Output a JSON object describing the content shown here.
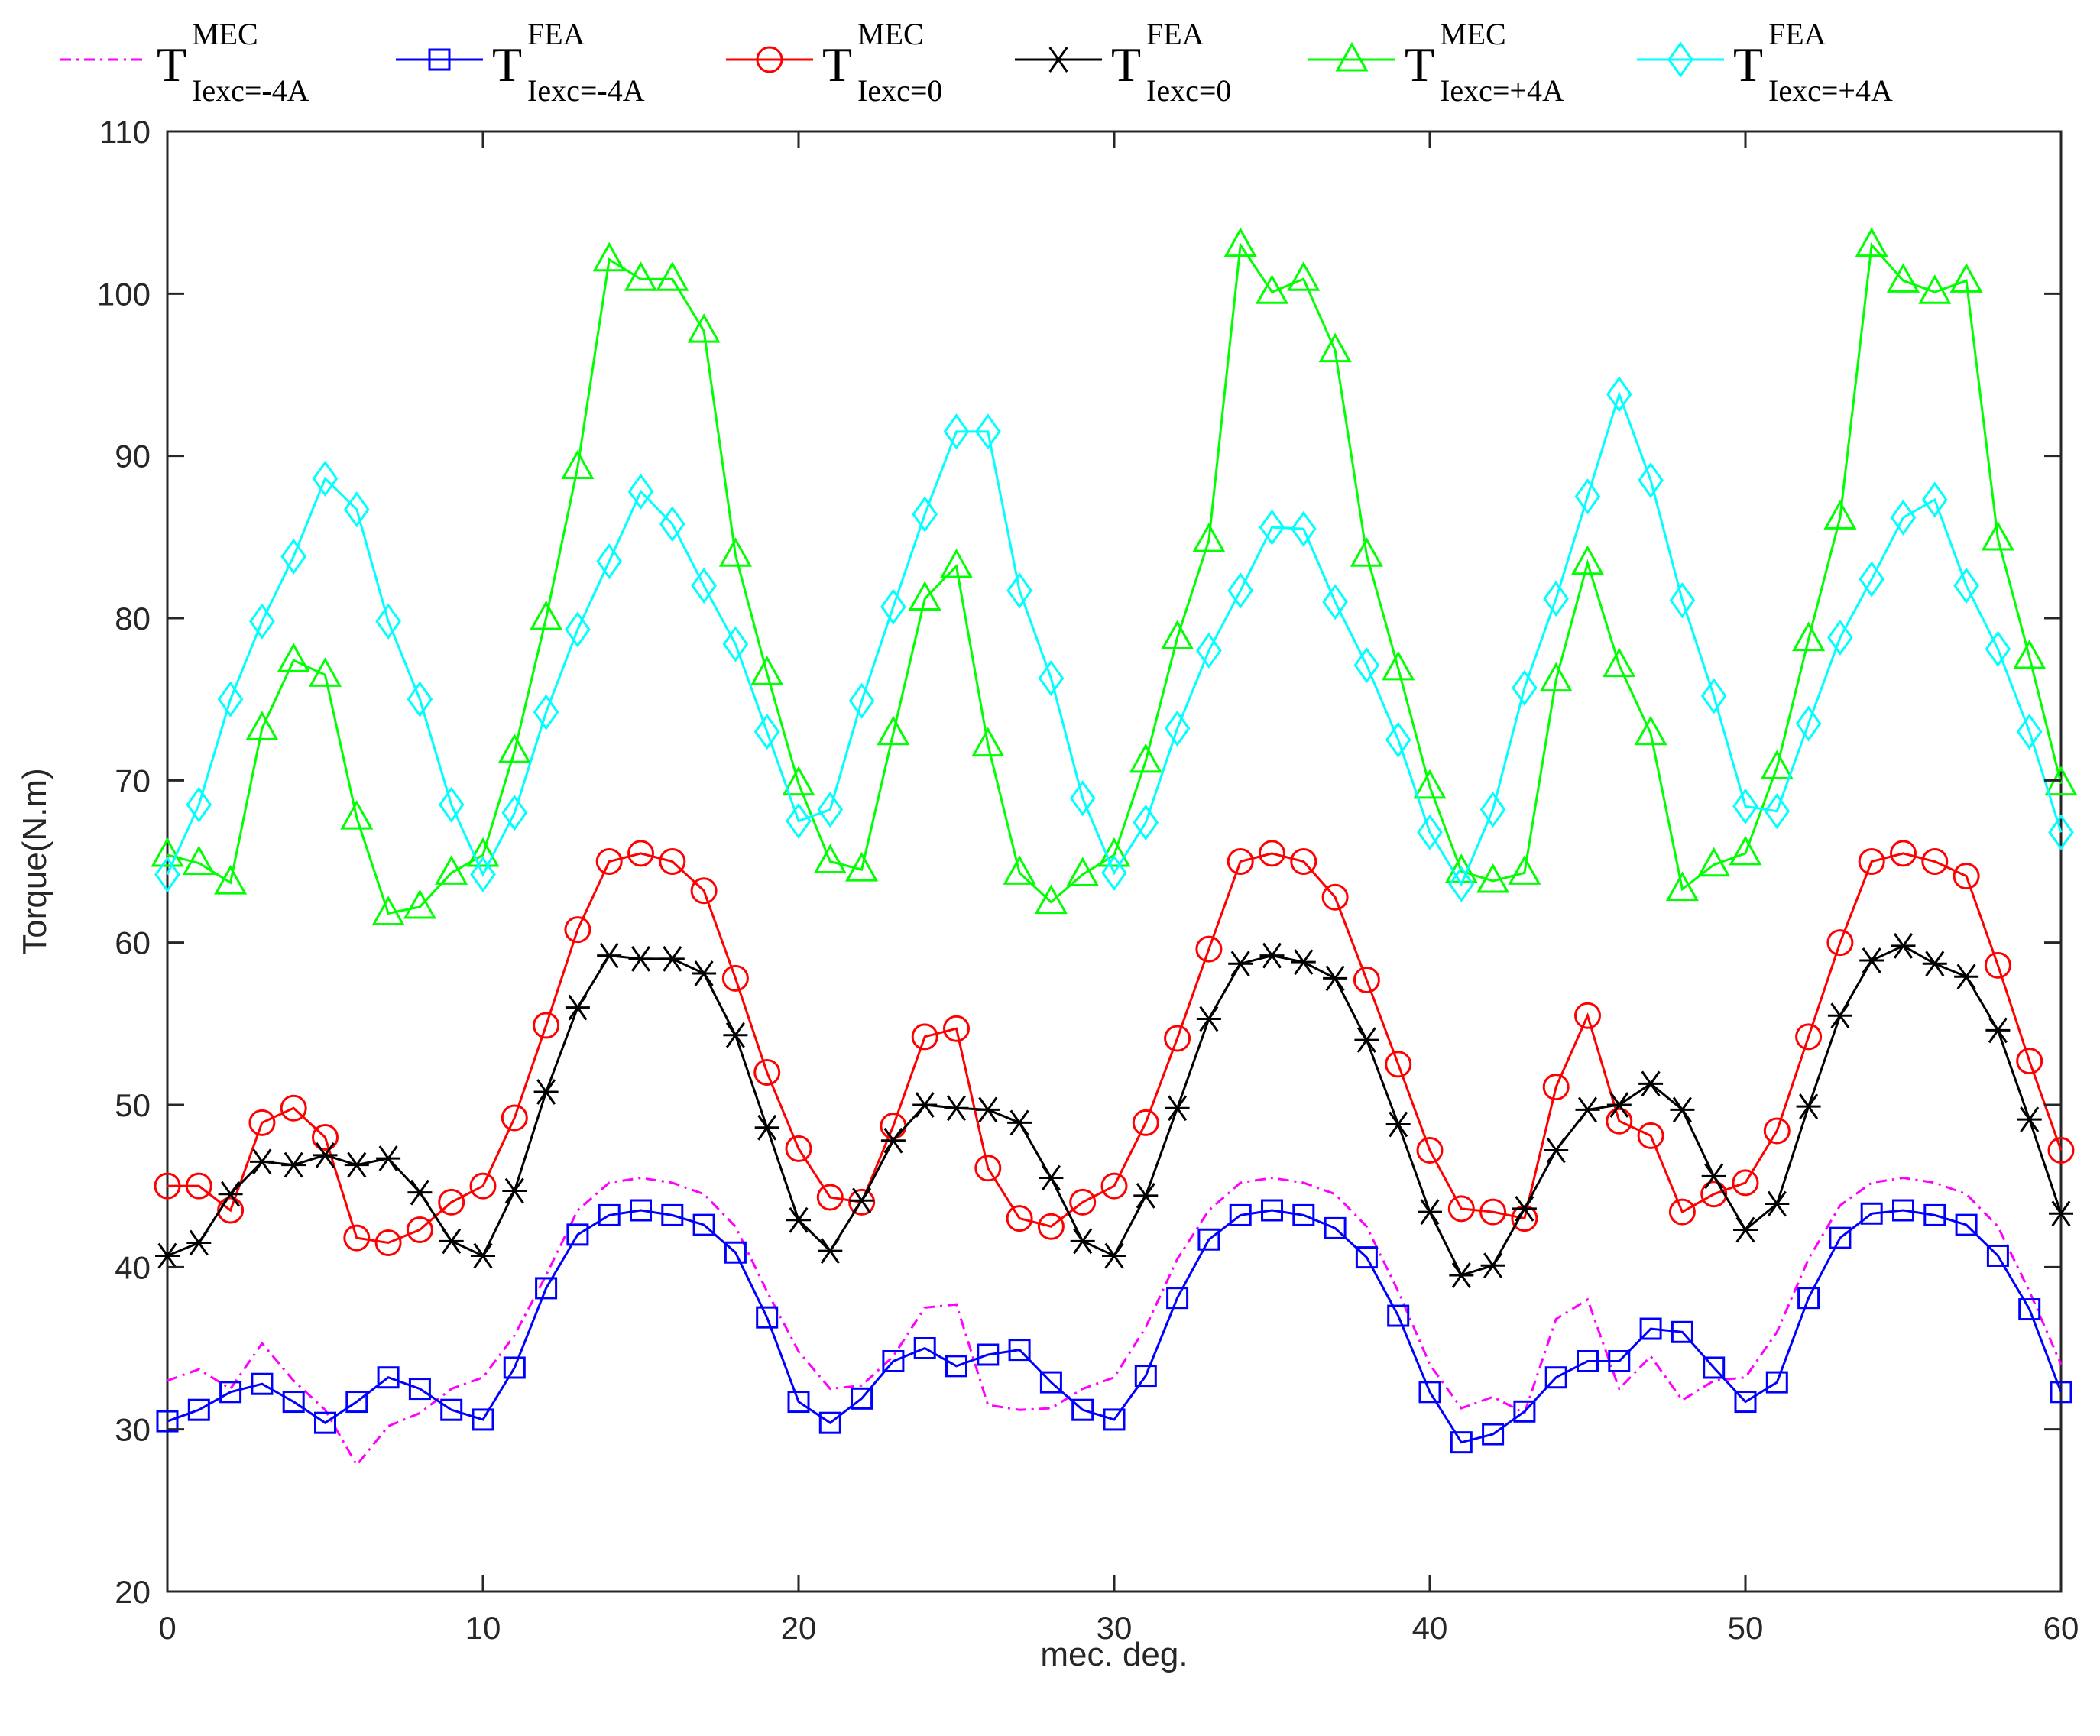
{
  "chart_data": {
    "type": "line",
    "title": "",
    "xlabel": "mec. deg.",
    "ylabel": "Torque(N.m)",
    "xlim": [
      0,
      60
    ],
    "ylim": [
      20,
      110
    ],
    "xticks": [
      0,
      10,
      20,
      30,
      40,
      50,
      60
    ],
    "yticks": [
      20,
      30,
      40,
      50,
      60,
      70,
      80,
      90,
      100,
      110
    ],
    "xtick_labels": [
      "0",
      "10",
      "20",
      "30",
      "40",
      "50",
      "60"
    ],
    "ytick_labels": [
      "20",
      "30",
      "40",
      "50",
      "60",
      "70",
      "80",
      "90",
      "100",
      "110"
    ],
    "grid": false,
    "legend_position": "top",
    "x": [
      0,
      1,
      2,
      3,
      4,
      5,
      6,
      7,
      8,
      9,
      10,
      11,
      12,
      13,
      14,
      15,
      16,
      17,
      18,
      19,
      20,
      21,
      22,
      23,
      24,
      25,
      26,
      27,
      28,
      29,
      30,
      31,
      32,
      33,
      34,
      35,
      36,
      37,
      38,
      39,
      40,
      41,
      42,
      43,
      44,
      45,
      46,
      47,
      48,
      49,
      50,
      51,
      52,
      53,
      54,
      55,
      56,
      57,
      58,
      59,
      60
    ],
    "series": [
      {
        "name": "T MEC Iexc=-4A",
        "legend_main": "T",
        "legend_sup": "MEC",
        "legend_sub": "Iexc=-4A",
        "color": "#ff00ff",
        "marker": "none",
        "linestyle": "dashdot",
        "values": [
          33.0,
          33.7,
          32.5,
          35.3,
          33.0,
          31.2,
          27.8,
          30.2,
          31.0,
          32.5,
          33.2,
          35.8,
          39.5,
          43.5,
          45.2,
          45.5,
          45.2,
          44.5,
          42.5,
          38.5,
          34.8,
          32.5,
          32.7,
          34.5,
          37.5,
          37.7,
          31.5,
          31.2,
          31.3,
          32.5,
          33.2,
          36.3,
          40.5,
          43.5,
          45.2,
          45.5,
          45.2,
          44.5,
          42.5,
          38.5,
          34.0,
          31.3,
          32.0,
          31.0,
          36.8,
          38.0,
          32.5,
          34.5,
          31.8,
          33.0,
          33.2,
          36.0,
          40.5,
          43.8,
          45.2,
          45.5,
          45.2,
          44.5,
          42.5,
          38.5,
          34.0
        ]
      },
      {
        "name": "T FEA Iexc=-4A",
        "legend_main": "T",
        "legend_sup": "FEA",
        "legend_sub": "Iexc=-4A",
        "color": "#0000ff",
        "marker": "square",
        "linestyle": "solid",
        "values": [
          30.5,
          31.2,
          32.3,
          32.8,
          31.7,
          30.4,
          31.7,
          33.2,
          32.5,
          31.2,
          30.6,
          33.8,
          38.7,
          42.0,
          43.2,
          43.5,
          43.2,
          42.6,
          40.9,
          36.9,
          31.7,
          30.4,
          31.9,
          34.2,
          35.0,
          33.9,
          34.6,
          34.9,
          32.9,
          31.2,
          30.6,
          33.3,
          38.1,
          41.7,
          43.2,
          43.5,
          43.2,
          42.4,
          40.6,
          37.0,
          32.3,
          29.2,
          29.7,
          31.1,
          33.2,
          34.2,
          34.2,
          36.2,
          36.0,
          33.8,
          31.7,
          32.9,
          38.1,
          41.8,
          43.3,
          43.5,
          43.2,
          42.6,
          40.7,
          37.4,
          32.3
        ]
      },
      {
        "name": "T MEC Iexc=0",
        "legend_main": "T",
        "legend_sup": "MEC",
        "legend_sub": "Iexc=0",
        "color": "#ff0000",
        "marker": "circle",
        "linestyle": "solid",
        "values": [
          45.0,
          45.0,
          43.5,
          48.9,
          49.8,
          48.0,
          41.8,
          41.5,
          42.3,
          44.0,
          45.0,
          49.2,
          54.9,
          60.8,
          65.0,
          65.5,
          65.0,
          63.2,
          57.8,
          52.0,
          47.3,
          44.3,
          44.0,
          48.7,
          54.2,
          54.7,
          46.1,
          43.0,
          42.5,
          44.0,
          45.0,
          48.9,
          54.1,
          59.6,
          65.0,
          65.5,
          65.0,
          62.8,
          57.7,
          52.5,
          47.2,
          43.6,
          43.4,
          43.0,
          51.1,
          55.5,
          49.0,
          48.1,
          43.4,
          44.5,
          45.2,
          48.4,
          54.2,
          60.0,
          65.0,
          65.5,
          65.0,
          64.1,
          58.6,
          52.7,
          47.2
        ]
      },
      {
        "name": "T FEA Iexc=0",
        "legend_main": "T",
        "legend_sup": "FEA",
        "legend_sub": "Iexc=0",
        "color": "#000000",
        "marker": "asterisk",
        "linestyle": "solid",
        "values": [
          40.7,
          41.5,
          44.5,
          46.5,
          46.3,
          46.9,
          46.3,
          46.7,
          44.6,
          41.6,
          40.7,
          44.7,
          50.8,
          56.0,
          59.2,
          59.0,
          59.0,
          58.1,
          54.3,
          48.6,
          42.9,
          41.0,
          44.1,
          47.8,
          50.0,
          49.8,
          49.7,
          48.9,
          45.5,
          41.6,
          40.7,
          44.4,
          49.8,
          55.3,
          58.7,
          59.2,
          58.8,
          57.8,
          54.0,
          48.8,
          43.4,
          39.5,
          40.1,
          43.6,
          47.2,
          49.7,
          50.0,
          51.3,
          49.7,
          45.6,
          42.3,
          43.9,
          49.9,
          55.5,
          58.9,
          59.8,
          58.7,
          57.9,
          54.6,
          49.1,
          43.3
        ]
      },
      {
        "name": "T MEC Iexc=+4A",
        "legend_main": "T",
        "legend_sup": "MEC",
        "legend_sub": "Iexc=+4A",
        "color": "#00ff00",
        "marker": "triangle",
        "linestyle": "solid",
        "values": [
          65.4,
          64.9,
          63.7,
          73.2,
          77.4,
          76.5,
          67.7,
          61.8,
          62.2,
          64.3,
          65.4,
          71.8,
          80.0,
          89.3,
          102.1,
          100.9,
          100.9,
          97.7,
          83.9,
          76.6,
          69.8,
          65.0,
          64.5,
          72.9,
          81.2,
          83.2,
          72.2,
          64.3,
          62.5,
          64.2,
          65.4,
          71.2,
          78.8,
          84.8,
          103.0,
          100.1,
          100.9,
          96.5,
          83.9,
          76.9,
          69.6,
          64.4,
          63.8,
          64.3,
          76.2,
          83.4,
          77.1,
          72.9,
          63.3,
          64.8,
          65.5,
          70.8,
          78.7,
          86.2,
          103.0,
          100.8,
          100.1,
          100.8,
          84.9,
          77.6,
          69.8
        ]
      },
      {
        "name": "T FEA Iexc=+4A",
        "legend_main": "T",
        "legend_sup": "FEA",
        "legend_sub": "Iexc=+4A",
        "color": "#00ffff",
        "marker": "diamond",
        "linestyle": "solid",
        "values": [
          64.2,
          68.5,
          75.0,
          79.8,
          83.8,
          88.6,
          86.7,
          79.8,
          75.0,
          68.5,
          64.2,
          68.0,
          74.2,
          79.3,
          83.5,
          87.8,
          85.8,
          82.0,
          78.4,
          73.0,
          67.5,
          68.2,
          74.9,
          80.7,
          86.4,
          91.5,
          91.5,
          81.7,
          76.3,
          68.9,
          64.3,
          67.4,
          73.2,
          78.0,
          81.7,
          85.6,
          85.5,
          81.0,
          77.1,
          72.5,
          66.8,
          63.6,
          68.2,
          75.7,
          81.2,
          87.5,
          93.8,
          88.5,
          81.1,
          75.2,
          68.4,
          68.1,
          73.5,
          78.8,
          82.4,
          86.2,
          87.3,
          82.0,
          78.1,
          73.0,
          66.8
        ]
      }
    ]
  }
}
